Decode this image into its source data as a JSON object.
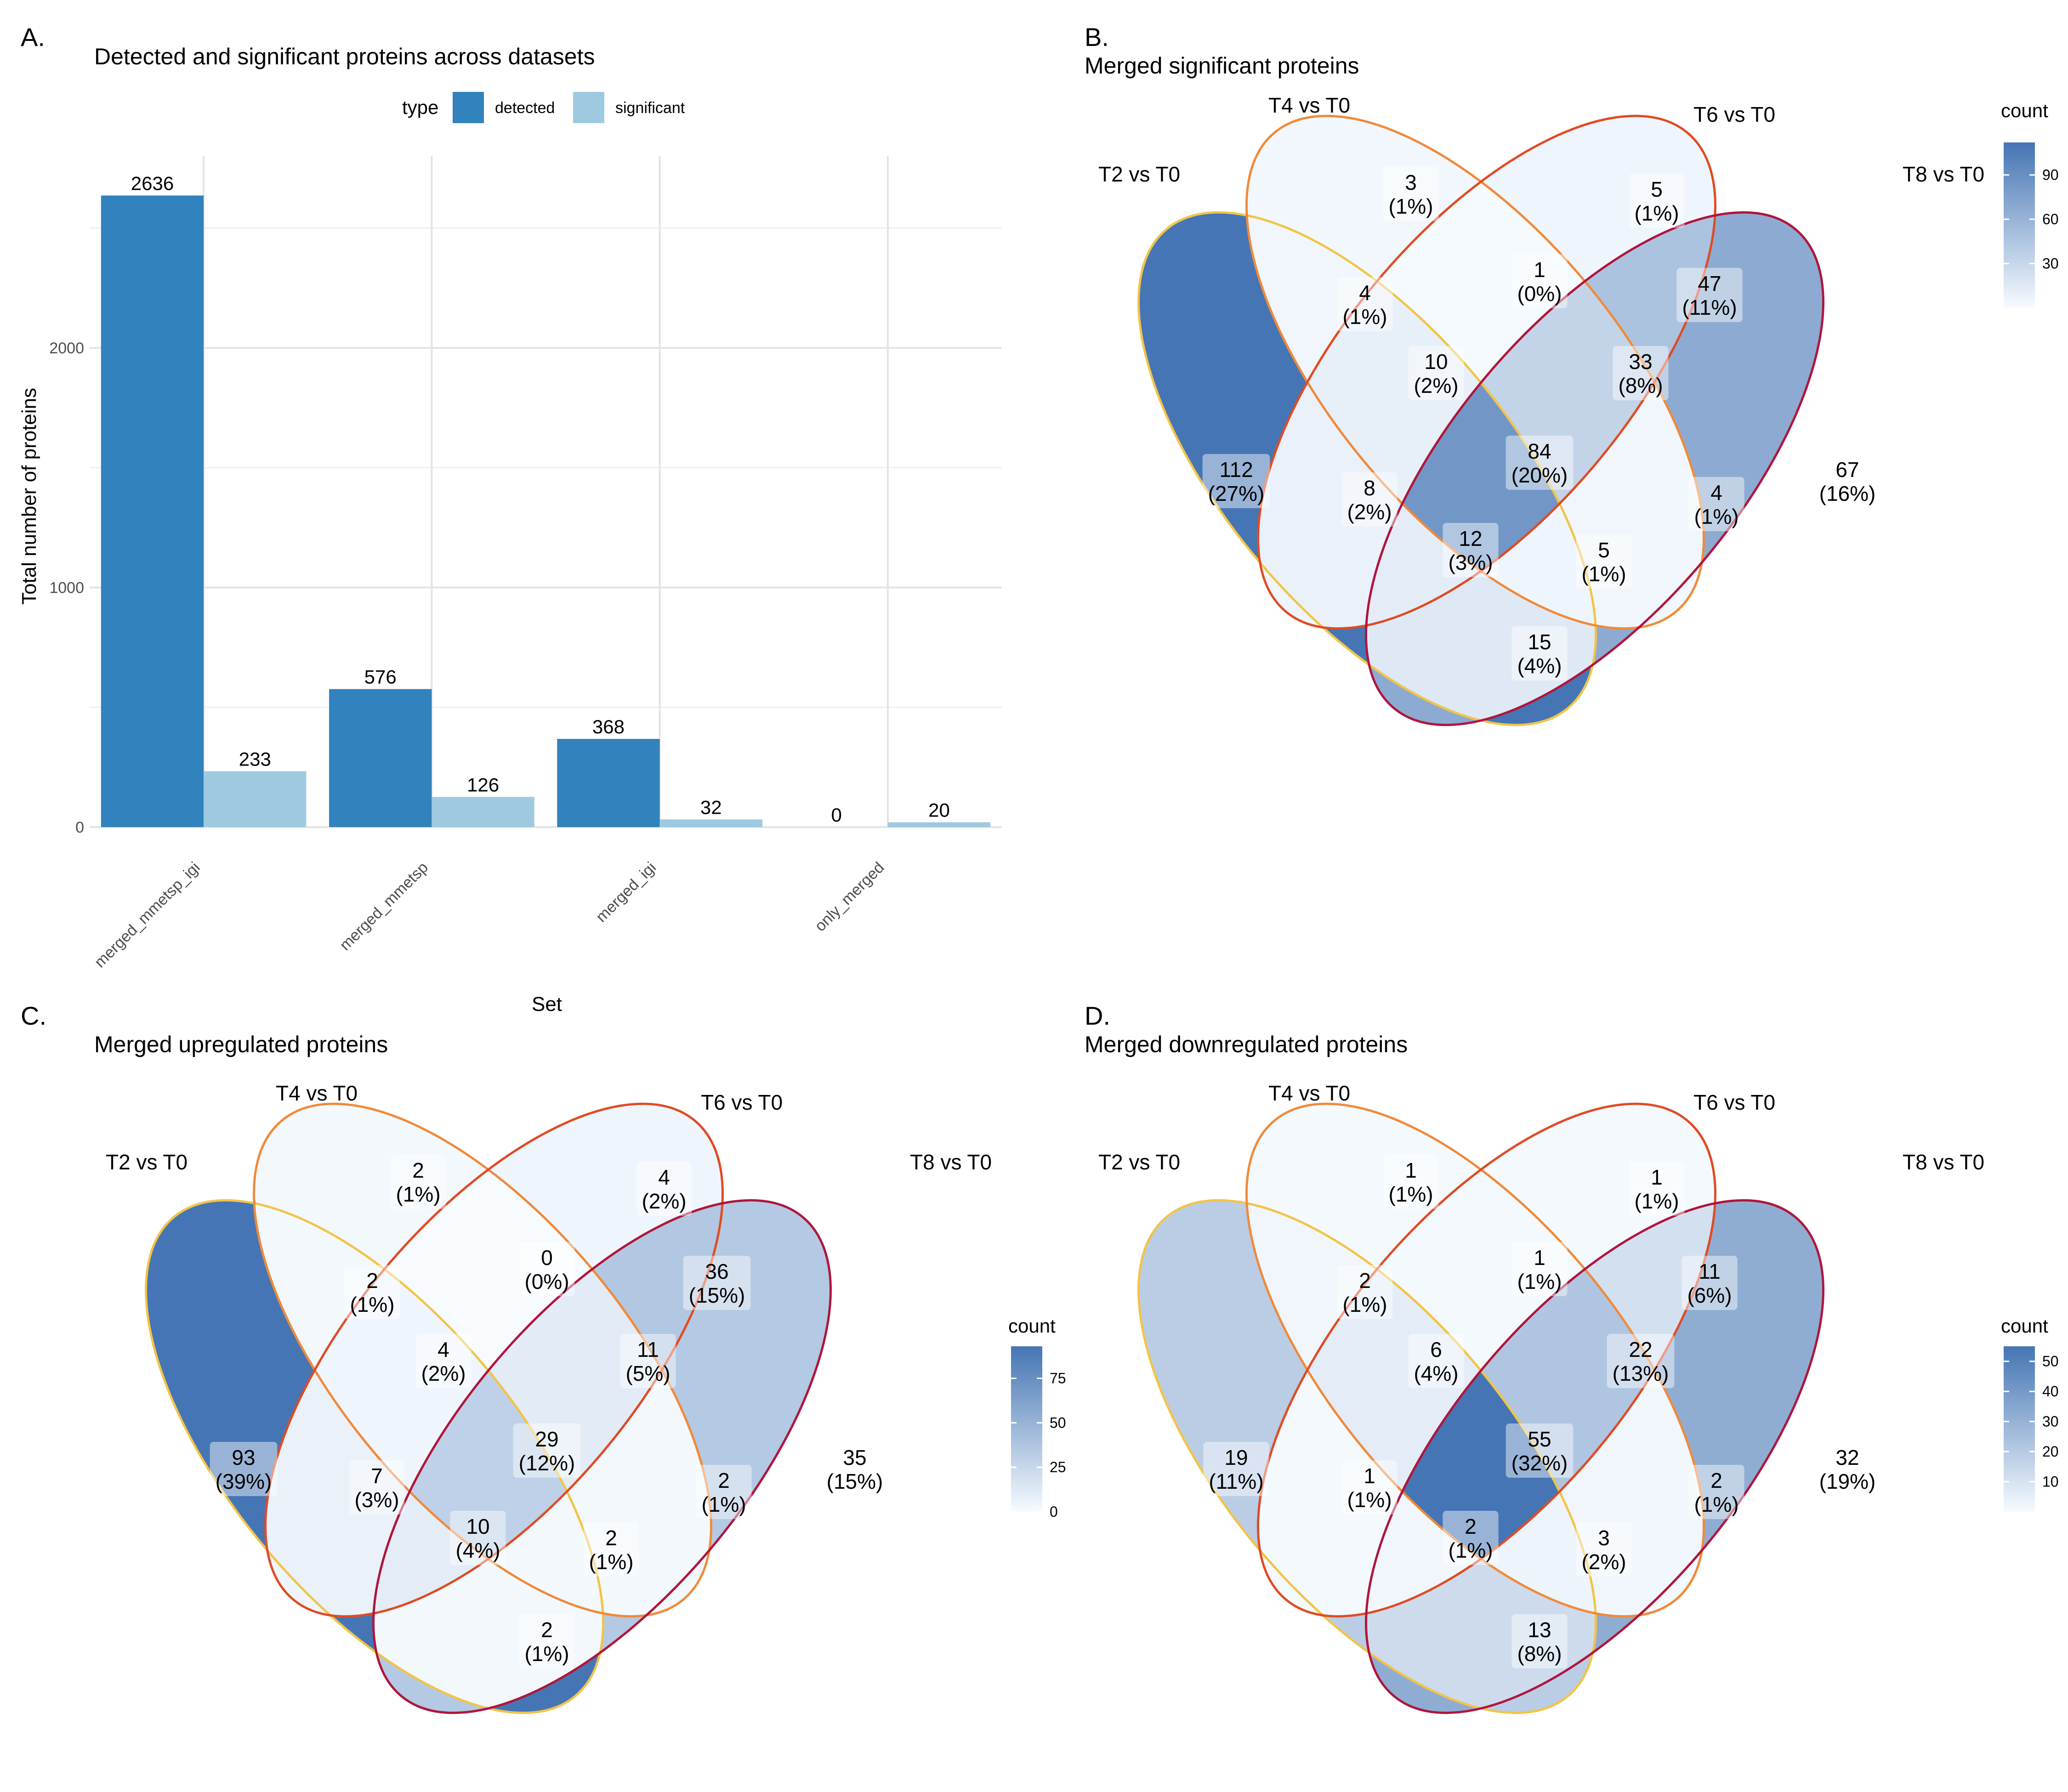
{
  "panels": {
    "a": {
      "letter": "A."
    },
    "b": {
      "letter": "B."
    },
    "c": {
      "letter": "C."
    },
    "d": {
      "letter": "D."
    }
  },
  "chart_data": [
    {
      "type": "bar",
      "title": "Detected and significant proteins across datasets",
      "xlabel": "Set",
      "ylabel": "Total number of proteins",
      "categories": [
        "merged_mmetsp_igi",
        "merged_mmetsp",
        "merged_igi",
        "only_merged"
      ],
      "legend_title": "type",
      "legend_position": "top",
      "series": [
        {
          "name": "detected",
          "color": "#3182bd",
          "values": [
            2636,
            576,
            368,
            0
          ]
        },
        {
          "name": "significant",
          "color": "#9ecae1",
          "values": [
            233,
            126,
            32,
            20
          ]
        }
      ],
      "ylim": [
        0,
        2800
      ],
      "yticks": [
        0,
        1000,
        2000
      ],
      "grid": true
    },
    {
      "type": "venn",
      "title": "Merged significant proteins",
      "sets": [
        "T2 vs T0",
        "T4 vs T0",
        "T6 vs T0",
        "T8 vs T0"
      ],
      "regions": [
        {
          "sets": [
            "T2 vs T0"
          ],
          "count": 112,
          "pct": "(27%)"
        },
        {
          "sets": [
            "T4 vs T0"
          ],
          "count": 3,
          "pct": "(1%)"
        },
        {
          "sets": [
            "T6 vs T0"
          ],
          "count": 5,
          "pct": "(1%)"
        },
        {
          "sets": [
            "T8 vs T0"
          ],
          "count": 67,
          "pct": "(16%)"
        },
        {
          "sets": [
            "T2 vs T0",
            "T4 vs T0"
          ],
          "count": 4,
          "pct": "(1%)"
        },
        {
          "sets": [
            "T4 vs T0",
            "T6 vs T0"
          ],
          "count": 1,
          "pct": "(0%)"
        },
        {
          "sets": [
            "T6 vs T0",
            "T8 vs T0"
          ],
          "count": 47,
          "pct": "(11%)"
        },
        {
          "sets": [
            "T2 vs T0",
            "T4 vs T0",
            "T6 vs T0"
          ],
          "count": 10,
          "pct": "(2%)"
        },
        {
          "sets": [
            "T4 vs T0",
            "T6 vs T0",
            "T8 vs T0"
          ],
          "count": 33,
          "pct": "(8%)"
        },
        {
          "sets": [
            "T2 vs T0",
            "T4 vs T0",
            "T6 vs T0",
            "T8 vs T0"
          ],
          "count": 84,
          "pct": "(20%)"
        },
        {
          "sets": [
            "T2 vs T0",
            "T6 vs T0"
          ],
          "count": 8,
          "pct": "(2%)"
        },
        {
          "sets": [
            "T4 vs T0",
            "T8 vs T0"
          ],
          "count": 4,
          "pct": "(1%)"
        },
        {
          "sets": [
            "T2 vs T0",
            "T6 vs T0",
            "T8 vs T0"
          ],
          "count": 12,
          "pct": "(3%)"
        },
        {
          "sets": [
            "T2 vs T0",
            "T4 vs T0",
            "T8 vs T0"
          ],
          "count": 5,
          "pct": "(1%)"
        },
        {
          "sets": [
            "T2 vs T0",
            "T8 vs T0"
          ],
          "count": 15,
          "pct": "(4%)"
        }
      ],
      "colorbar": {
        "title": "count",
        "ticks": [
          "90",
          "60",
          "30"
        ],
        "tick_values": [
          90,
          60,
          30
        ],
        "range": [
          0,
          112
        ]
      }
    },
    {
      "type": "venn",
      "title": "Merged upregulated proteins",
      "sets": [
        "T2 vs T0",
        "T4 vs T0",
        "T6 vs T0",
        "T8 vs T0"
      ],
      "regions": [
        {
          "sets": [
            "T2 vs T0"
          ],
          "count": 93,
          "pct": "(39%)"
        },
        {
          "sets": [
            "T4 vs T0"
          ],
          "count": 2,
          "pct": "(1%)"
        },
        {
          "sets": [
            "T6 vs T0"
          ],
          "count": 4,
          "pct": "(2%)"
        },
        {
          "sets": [
            "T8 vs T0"
          ],
          "count": 35,
          "pct": "(15%)"
        },
        {
          "sets": [
            "T2 vs T0",
            "T4 vs T0"
          ],
          "count": 2,
          "pct": "(1%)"
        },
        {
          "sets": [
            "T4 vs T0",
            "T6 vs T0"
          ],
          "count": 0,
          "pct": "(0%)"
        },
        {
          "sets": [
            "T6 vs T0",
            "T8 vs T0"
          ],
          "count": 36,
          "pct": "(15%)"
        },
        {
          "sets": [
            "T2 vs T0",
            "T4 vs T0",
            "T6 vs T0"
          ],
          "count": 4,
          "pct": "(2%)"
        },
        {
          "sets": [
            "T4 vs T0",
            "T6 vs T0",
            "T8 vs T0"
          ],
          "count": 11,
          "pct": "(5%)"
        },
        {
          "sets": [
            "T2 vs T0",
            "T4 vs T0",
            "T6 vs T0",
            "T8 vs T0"
          ],
          "count": 29,
          "pct": "(12%)"
        },
        {
          "sets": [
            "T2 vs T0",
            "T6 vs T0"
          ],
          "count": 7,
          "pct": "(3%)"
        },
        {
          "sets": [
            "T4 vs T0",
            "T8 vs T0"
          ],
          "count": 2,
          "pct": "(1%)"
        },
        {
          "sets": [
            "T2 vs T0",
            "T6 vs T0",
            "T8 vs T0"
          ],
          "count": 10,
          "pct": "(4%)"
        },
        {
          "sets": [
            "T2 vs T0",
            "T4 vs T0",
            "T8 vs T0"
          ],
          "count": 2,
          "pct": "(1%)"
        },
        {
          "sets": [
            "T2 vs T0",
            "T8 vs T0"
          ],
          "count": 2,
          "pct": "(1%)"
        }
      ],
      "colorbar": {
        "title": "count",
        "ticks": [
          "75",
          "50",
          "25",
          "0"
        ],
        "tick_values": [
          75,
          50,
          25,
          0
        ],
        "range": [
          0,
          93
        ]
      }
    },
    {
      "type": "venn",
      "title": "Merged downregulated proteins",
      "sets": [
        "T2 vs T0",
        "T4 vs T0",
        "T6 vs T0",
        "T8 vs T0"
      ],
      "regions": [
        {
          "sets": [
            "T2 vs T0"
          ],
          "count": 19,
          "pct": "(11%)"
        },
        {
          "sets": [
            "T4 vs T0"
          ],
          "count": 1,
          "pct": "(1%)"
        },
        {
          "sets": [
            "T6 vs T0"
          ],
          "count": 1,
          "pct": "(1%)"
        },
        {
          "sets": [
            "T8 vs T0"
          ],
          "count": 32,
          "pct": "(19%)"
        },
        {
          "sets": [
            "T2 vs T0",
            "T4 vs T0"
          ],
          "count": 2,
          "pct": "(1%)"
        },
        {
          "sets": [
            "T4 vs T0",
            "T6 vs T0"
          ],
          "count": 1,
          "pct": "(1%)"
        },
        {
          "sets": [
            "T6 vs T0",
            "T8 vs T0"
          ],
          "count": 11,
          "pct": "(6%)"
        },
        {
          "sets": [
            "T2 vs T0",
            "T4 vs T0",
            "T6 vs T0"
          ],
          "count": 6,
          "pct": "(4%)"
        },
        {
          "sets": [
            "T4 vs T0",
            "T6 vs T0",
            "T8 vs T0"
          ],
          "count": 22,
          "pct": "(13%)"
        },
        {
          "sets": [
            "T2 vs T0",
            "T4 vs T0",
            "T6 vs T0",
            "T8 vs T0"
          ],
          "count": 55,
          "pct": "(32%)"
        },
        {
          "sets": [
            "T2 vs T0",
            "T6 vs T0"
          ],
          "count": 1,
          "pct": "(1%)"
        },
        {
          "sets": [
            "T4 vs T0",
            "T8 vs T0"
          ],
          "count": 2,
          "pct": "(1%)"
        },
        {
          "sets": [
            "T2 vs T0",
            "T6 vs T0",
            "T8 vs T0"
          ],
          "count": 2,
          "pct": "(1%)"
        },
        {
          "sets": [
            "T2 vs T0",
            "T4 vs T0",
            "T8 vs T0"
          ],
          "count": 3,
          "pct": "(2%)"
        },
        {
          "sets": [
            "T2 vs T0",
            "T8 vs T0"
          ],
          "count": 13,
          "pct": "(8%)"
        }
      ],
      "colorbar": {
        "title": "count",
        "ticks": [
          "50",
          "40",
          "30",
          "20",
          "10"
        ],
        "tick_values": [
          50,
          40,
          30,
          20,
          10
        ],
        "range": [
          0,
          55
        ]
      }
    }
  ],
  "colors": {
    "gradient_low": "#f7fbff",
    "gradient_high": "#4575b4",
    "set_outlines": [
      "#f2c447",
      "#f08a3a",
      "#e04b24",
      "#b0153c"
    ]
  }
}
